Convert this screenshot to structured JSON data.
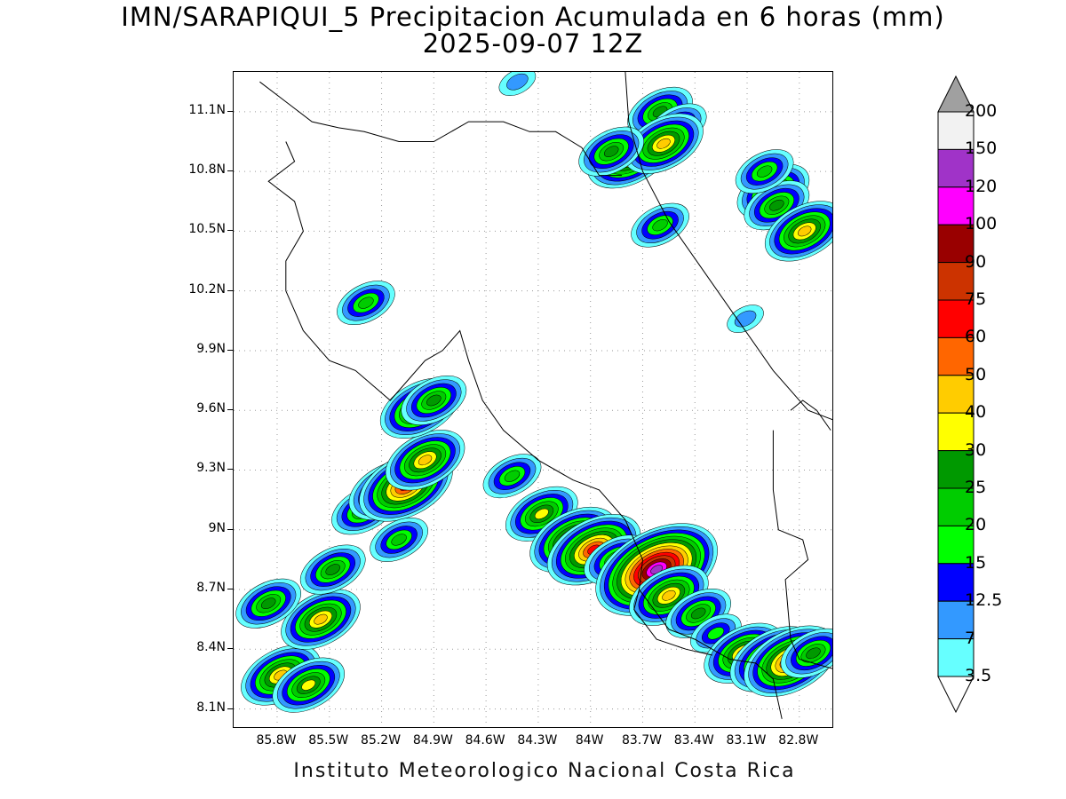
{
  "title_line1": "IMN/SARAPIQUI_5 Precipitacion Acumulada en 6 horas (mm)",
  "title_line2": "2025-09-07 12Z",
  "footer": "Instituto Meteorologico Nacional Costa Rica",
  "map": {
    "lon_range": [
      -86.05,
      -82.6
    ],
    "lat_range": [
      8.0,
      11.3
    ],
    "lat_ticks": [
      "11.1N",
      "10.8N",
      "10.5N",
      "10.2N",
      "9.9N",
      "9.6N",
      "9.3N",
      "9N",
      "8.7N",
      "8.4N",
      "8.1N"
    ],
    "lat_tick_values": [
      11.1,
      10.8,
      10.5,
      10.2,
      9.9,
      9.6,
      9.3,
      9.0,
      8.7,
      8.4,
      8.1
    ],
    "lon_ticks": [
      "85.8W",
      "85.5W",
      "85.2W",
      "84.9W",
      "84.6W",
      "84.3W",
      "84W",
      "83.7W",
      "83.4W",
      "83.1W",
      "82.8W"
    ],
    "lon_tick_values": [
      -85.8,
      -85.5,
      -85.2,
      -84.9,
      -84.6,
      -84.3,
      -84.0,
      -83.7,
      -83.4,
      -83.1,
      -82.8
    ],
    "grid": "dotted",
    "coastline_color": "#000000"
  },
  "colorbar": {
    "labels": [
      "200",
      "150",
      "120",
      "100",
      "90",
      "75",
      "60",
      "50",
      "40",
      "30",
      "25",
      "20",
      "15",
      "12.5",
      "7",
      "3.5"
    ],
    "colors": [
      "#f2f2f2",
      "#a033c8",
      "#ff00ff",
      "#990000",
      "#cc3300",
      "#ff0000",
      "#ff6600",
      "#ffcc00",
      "#ffff00",
      "#009900",
      "#00cc00",
      "#00ff00",
      "#0000ff",
      "#3399ff",
      "#66ffff"
    ],
    "arrow_colors": {
      "top": "#a0a0a0",
      "bottom": "#ffffff"
    }
  },
  "precipitation_cells": [
    {
      "lon": -85.78,
      "lat": 8.27,
      "peak": 40
    },
    {
      "lon": -85.62,
      "lat": 8.22,
      "peak": 30
    },
    {
      "lon": -85.55,
      "lat": 8.55,
      "peak": 40
    },
    {
      "lon": -85.48,
      "lat": 8.8,
      "peak": 25
    },
    {
      "lon": -85.85,
      "lat": 8.63,
      "peak": 25
    },
    {
      "lon": -85.3,
      "lat": 9.1,
      "peak": 25
    },
    {
      "lon": -85.16,
      "lat": 9.2,
      "peak": 40
    },
    {
      "lon": -85.06,
      "lat": 9.22,
      "peak": 60
    },
    {
      "lon": -84.95,
      "lat": 9.35,
      "peak": 40
    },
    {
      "lon": -85.1,
      "lat": 8.95,
      "peak": 20
    },
    {
      "lon": -84.98,
      "lat": 9.61,
      "peak": 40
    },
    {
      "lon": -84.9,
      "lat": 9.65,
      "peak": 25
    },
    {
      "lon": -85.29,
      "lat": 10.14,
      "peak": 20
    },
    {
      "lon": -84.45,
      "lat": 9.27,
      "peak": 20
    },
    {
      "lon": -84.28,
      "lat": 9.08,
      "peak": 30
    },
    {
      "lon": -84.1,
      "lat": 8.95,
      "peak": 50
    },
    {
      "lon": -83.98,
      "lat": 8.9,
      "peak": 60
    },
    {
      "lon": -83.85,
      "lat": 8.85,
      "peak": 25
    },
    {
      "lon": -83.65,
      "lat": 8.78,
      "peak": 75
    },
    {
      "lon": -83.62,
      "lat": 8.8,
      "peak": 120
    },
    {
      "lon": -83.55,
      "lat": 8.67,
      "peak": 40
    },
    {
      "lon": -83.38,
      "lat": 8.58,
      "peak": 25
    },
    {
      "lon": -83.28,
      "lat": 8.48,
      "peak": 15
    },
    {
      "lon": -83.12,
      "lat": 8.38,
      "peak": 40
    },
    {
      "lon": -82.95,
      "lat": 8.35,
      "peak": 50
    },
    {
      "lon": -82.85,
      "lat": 8.34,
      "peak": 60
    },
    {
      "lon": -82.72,
      "lat": 8.38,
      "peak": 25
    },
    {
      "lon": -83.77,
      "lat": 10.88,
      "peak": 50
    },
    {
      "lon": -83.6,
      "lat": 11.1,
      "peak": 25
    },
    {
      "lon": -83.5,
      "lat": 11.03,
      "peak": 20
    },
    {
      "lon": -83.58,
      "lat": 10.94,
      "peak": 40
    },
    {
      "lon": -83.88,
      "lat": 10.9,
      "peak": 25
    },
    {
      "lon": -83.6,
      "lat": 10.53,
      "peak": 20
    },
    {
      "lon": -82.95,
      "lat": 10.7,
      "peak": 30
    },
    {
      "lon": -82.93,
      "lat": 10.63,
      "peak": 25
    },
    {
      "lon": -82.77,
      "lat": 10.5,
      "peak": 40
    },
    {
      "lon": -83.0,
      "lat": 10.8,
      "peak": 20
    },
    {
      "lon": -83.11,
      "lat": 10.06,
      "peak": 7
    },
    {
      "lon": -84.42,
      "lat": 11.25,
      "peak": 7
    }
  ]
}
